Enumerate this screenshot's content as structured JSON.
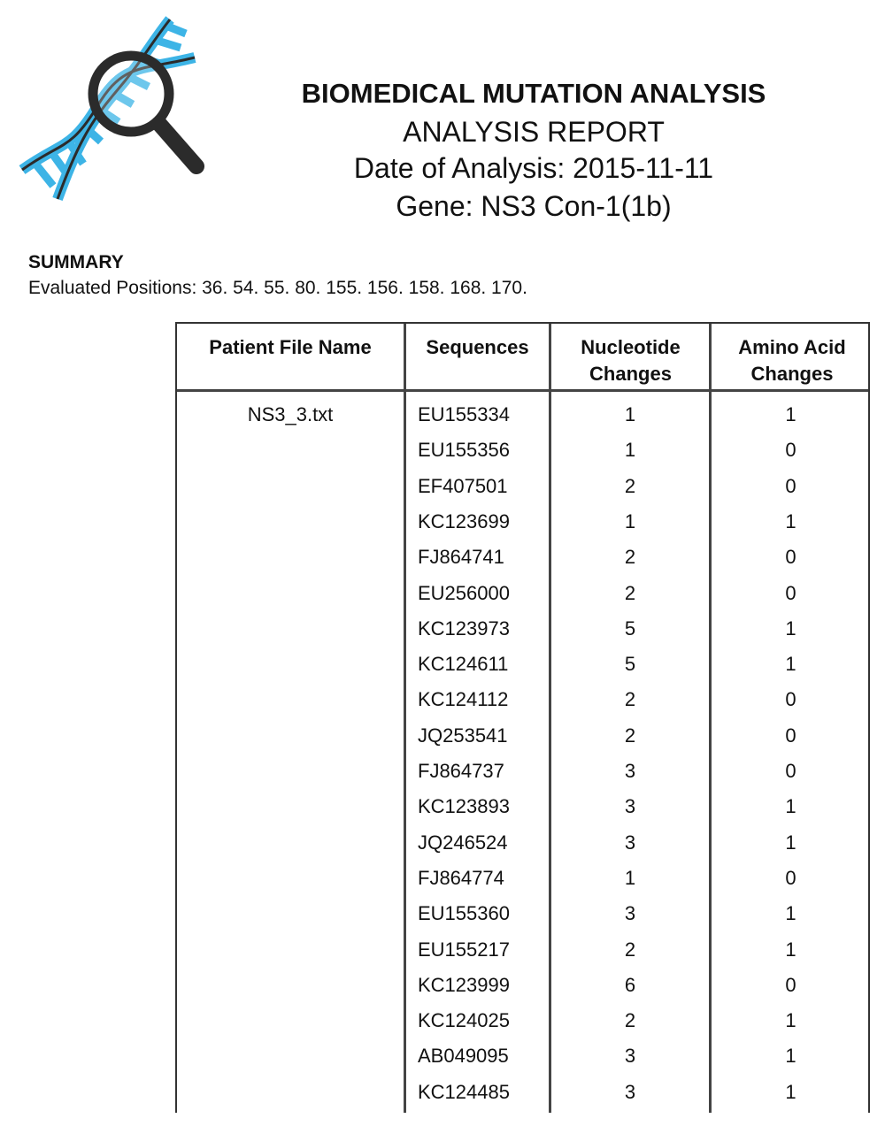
{
  "header": {
    "title": "BIOMEDICAL MUTATION ANALYSIS",
    "subtitle": "ANALYSIS REPORT",
    "date_line": "Date of Analysis: 2015-11-11",
    "gene_line": "Gene: NS3 Con-1(1b)",
    "logo_icon": "dna-magnifier-icon",
    "logo_colors": {
      "helix": "#3db4e6",
      "glass": "#2b2b2b"
    }
  },
  "summary": {
    "heading": "SUMMARY",
    "text": "Evaluated Positions: 36. 54. 55. 80. 155. 156. 158. 168. 170."
  },
  "table": {
    "columns": [
      "Patient File Name",
      "Sequences",
      "Nucleotide Changes",
      "Amino Acid Changes"
    ],
    "patient_file": "NS3_3.txt",
    "rows": [
      [
        "EU155334",
        "1",
        "1"
      ],
      [
        "EU155356",
        "1",
        "0"
      ],
      [
        "EF407501",
        "2",
        "0"
      ],
      [
        "KC123699",
        "1",
        "1"
      ],
      [
        "FJ864741",
        "2",
        "0"
      ],
      [
        "EU256000",
        "2",
        "0"
      ],
      [
        "KC123973",
        "5",
        "1"
      ],
      [
        "KC124611",
        "5",
        "1"
      ],
      [
        "KC124112",
        "2",
        "0"
      ],
      [
        "JQ253541",
        "2",
        "0"
      ],
      [
        "FJ864737",
        "3",
        "0"
      ],
      [
        "KC123893",
        "3",
        "1"
      ],
      [
        "JQ246524",
        "3",
        "1"
      ],
      [
        "FJ864774",
        "1",
        "0"
      ],
      [
        "EU155360",
        "3",
        "1"
      ],
      [
        "EU155217",
        "2",
        "1"
      ],
      [
        "KC123999",
        "6",
        "0"
      ],
      [
        "KC124025",
        "2",
        "1"
      ],
      [
        "AB049095",
        "3",
        "1"
      ],
      [
        "KC124485",
        "3",
        "1"
      ]
    ]
  }
}
